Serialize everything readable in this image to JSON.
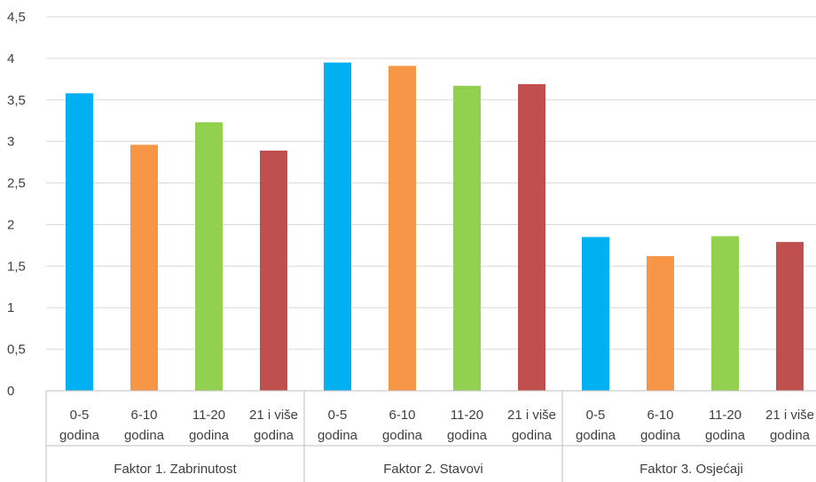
{
  "chart_data": {
    "type": "bar",
    "groups": [
      "Faktor 1. Zabrinutost",
      "Faktor 2. Stavovi",
      "Faktor 3. Osjećaji"
    ],
    "categories": [
      [
        "0-5",
        "godina"
      ],
      [
        "6-10",
        "godina"
      ],
      [
        "11-20",
        "godina"
      ],
      [
        "21 i više",
        "godina"
      ]
    ],
    "series_colors": [
      "#00b0f0",
      "#f79646",
      "#92d050",
      "#c0504d"
    ],
    "values": [
      [
        3.58,
        2.96,
        3.23,
        2.89
      ],
      [
        3.95,
        3.91,
        3.67,
        3.69
      ],
      [
        1.85,
        1.62,
        1.86,
        1.79
      ]
    ],
    "y_ticks": [
      "0",
      "0,5",
      "1",
      "1,5",
      "2",
      "2,5",
      "3",
      "3,5",
      "4",
      "4,5"
    ],
    "ylim": [
      0,
      4.5
    ],
    "grid": true,
    "legend": "none"
  }
}
